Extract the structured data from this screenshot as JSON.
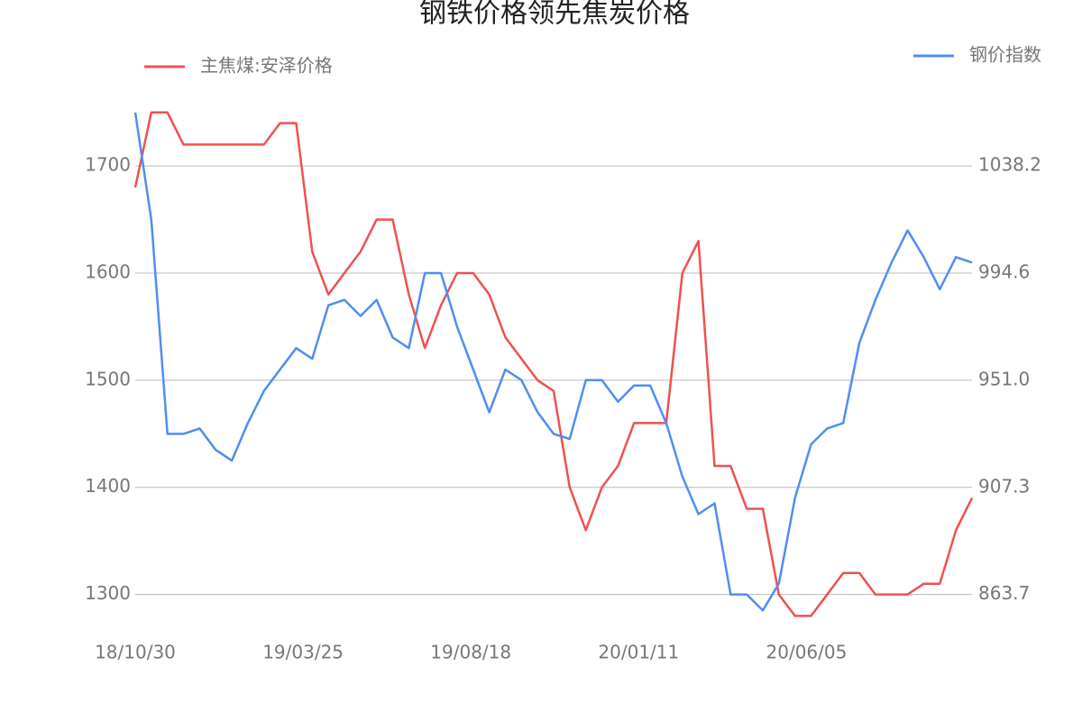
{
  "chart_data": {
    "type": "line",
    "title": "钢铁价格领先焦炭价格",
    "x": [
      "18/10/30",
      "18/11/13",
      "18/11/27",
      "18/12/11",
      "18/12/25",
      "19/01/08",
      "19/01/22",
      "19/02/05",
      "19/02/19",
      "19/03/05",
      "19/03/19",
      "19/04/02",
      "19/04/16",
      "19/04/30",
      "19/05/14",
      "19/05/28",
      "19/06/11",
      "19/06/25",
      "19/07/09",
      "19/07/23",
      "19/08/06",
      "19/08/20",
      "19/09/03",
      "19/09/17",
      "19/10/01",
      "19/10/15",
      "19/10/29",
      "19/11/12",
      "19/11/26",
      "19/12/10",
      "19/12/24",
      "20/01/07",
      "20/01/21",
      "20/02/04",
      "20/02/18",
      "20/03/03",
      "20/03/17",
      "20/03/31",
      "20/04/14",
      "20/04/28",
      "20/05/12",
      "20/05/26",
      "20/06/09",
      "20/06/23",
      "20/07/07",
      "20/07/21",
      "20/08/04",
      "20/08/18",
      "20/09/01",
      "20/09/15",
      "20/09/29",
      "20/10/13",
      "20/10/27"
    ],
    "series": [
      {
        "name": "主焦煤:安泽价格",
        "color": "#f05050",
        "axis": "y",
        "values": [
          1680,
          1750,
          1750,
          1720,
          1720,
          1720,
          1720,
          1720,
          1720,
          1740,
          1740,
          1620,
          1580,
          1600,
          1620,
          1650,
          1650,
          1580,
          1530,
          1570,
          1600,
          1600,
          1580,
          1540,
          1520,
          1500,
          1490,
          1400,
          1360,
          1400,
          1420,
          1460,
          1460,
          1460,
          1600,
          1630,
          1420,
          1420,
          1380,
          1380,
          1300,
          1280,
          1280,
          1300,
          1320,
          1320,
          1300,
          1300,
          1300,
          1310,
          1310,
          1360,
          1390
        ]
      },
      {
        "name": "钢价指数",
        "color": "#4f8ef0",
        "axis": "y2",
        "values": [
          1060.0,
          1016.4,
          929.1,
          929.1,
          931.3,
          922.6,
          918.2,
          933.5,
          946.6,
          955.3,
          964.0,
          959.7,
          981.5,
          983.7,
          977.1,
          983.7,
          968.4,
          964.0,
          994.6,
          994.6,
          972.8,
          955.3,
          937.9,
          955.3,
          951.0,
          937.9,
          929.1,
          927.0,
          951.0,
          951.0,
          942.2,
          948.8,
          948.8,
          933.5,
          911.7,
          896.4,
          900.8,
          863.7,
          863.7,
          857.2,
          868.1,
          903.0,
          924.8,
          931.3,
          933.5,
          966.2,
          983.7,
          998.9,
          1012.0,
          1001.1,
          988.0,
          1001.1,
          998.9
        ]
      }
    ],
    "xlim": [
      "18/10/30",
      "20/10/27"
    ],
    "xticks": [
      "18/10/30",
      "19/03/25",
      "19/08/18",
      "20/01/11",
      "20/06/05"
    ],
    "ylim": [
      1266,
      1754
    ],
    "yticks": [
      1300,
      1400,
      1500,
      1600,
      1700
    ],
    "y2lim": [
      848.87,
      1061.76
    ],
    "y2ticks": [
      863.7,
      907.3,
      {
        "value": 951.0,
        "label": "951.0"
      },
      994.6,
      1038.2
    ],
    "grid": true,
    "legend": "top"
  }
}
